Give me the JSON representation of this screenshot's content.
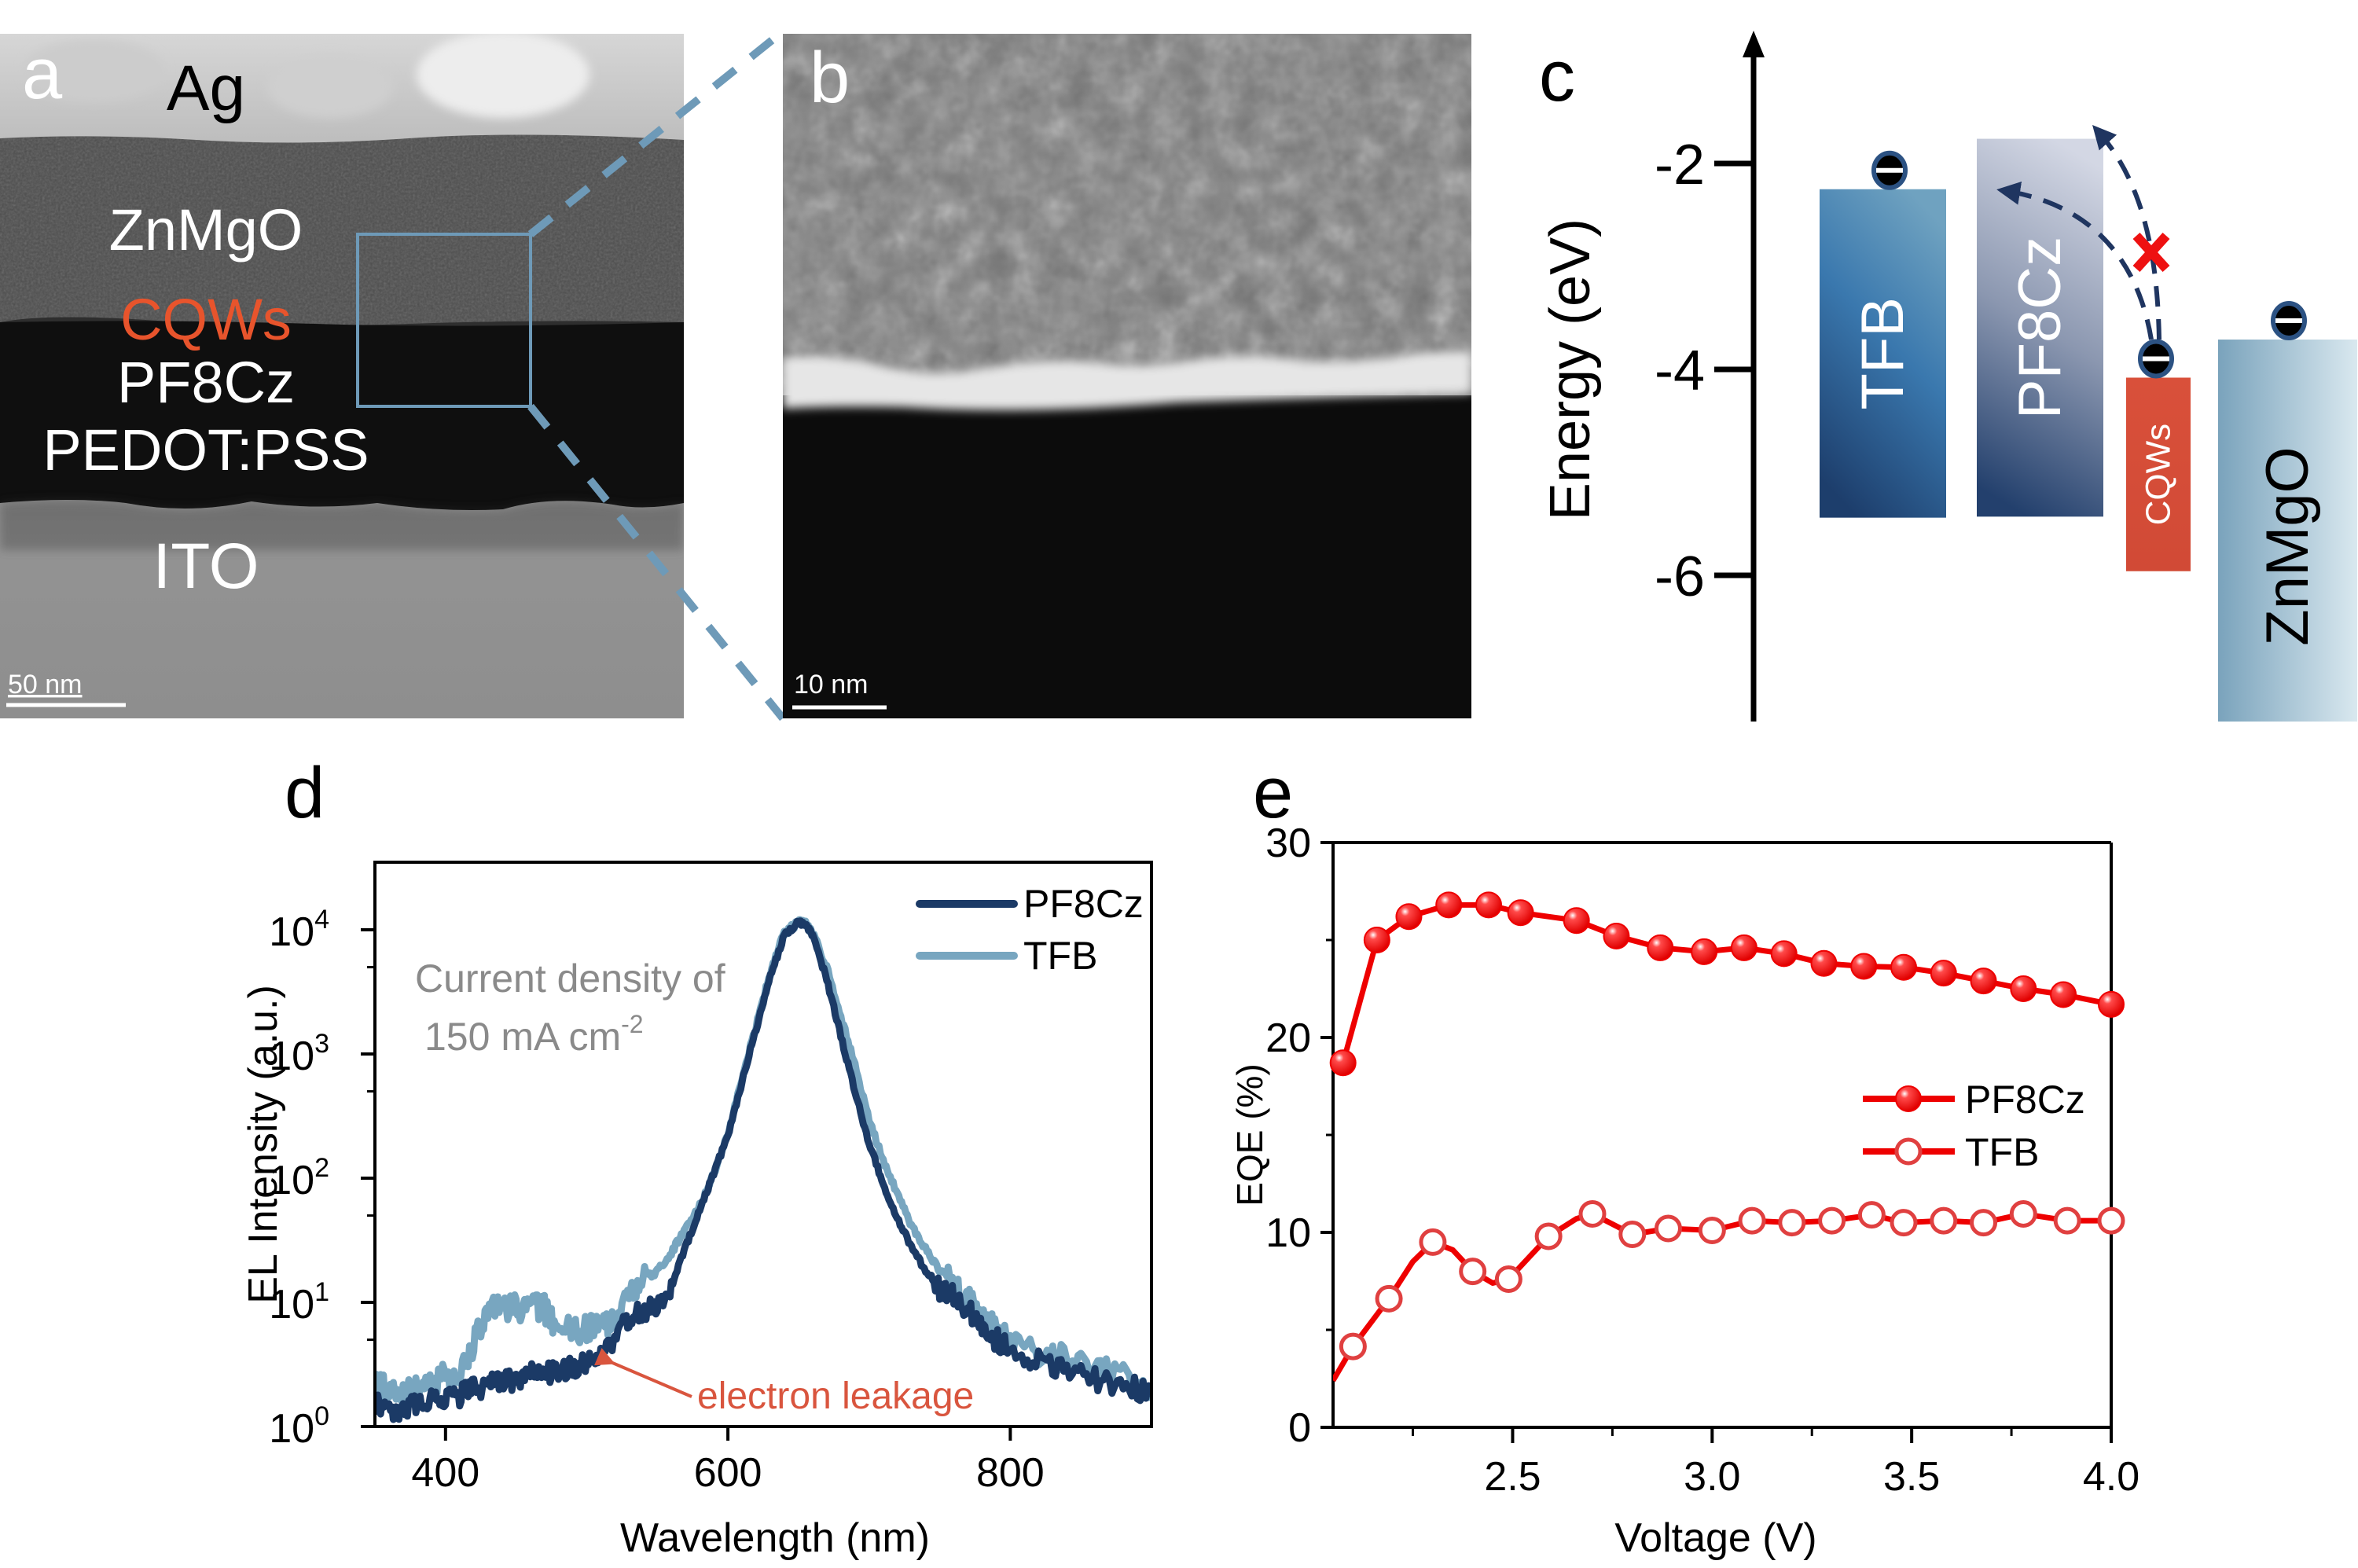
{
  "figure": {
    "panel_letters": {
      "a": "a",
      "b": "b",
      "c": "c",
      "d": "d",
      "e": "e"
    }
  },
  "panel_a": {
    "type": "cross-sectional TEM image",
    "layer_labels": [
      {
        "text": "Ag",
        "color": "#000000"
      },
      {
        "text": "ZnMgO",
        "color": "#ffffff"
      },
      {
        "text": "CQWs",
        "color": "#e8542c"
      },
      {
        "text": "PF8Cz",
        "color": "#ffffff"
      },
      {
        "text": "PEDOT:PSS",
        "color": "#ffffff"
      },
      {
        "text": "ITO",
        "color": "#ffffff"
      }
    ],
    "scale_bar": "50 nm",
    "zoom_box_color": "#6e9ab8"
  },
  "panel_b": {
    "type": "magnified TEM image",
    "scale_bar": "10 nm"
  },
  "panel_c": {
    "axis_label": "Energy (eV)",
    "ticks": [
      "-2",
      "-4",
      "-6"
    ],
    "tick_values": [
      -2,
      -4,
      -6
    ],
    "axis_range": [
      -7.42,
      -0.71
    ],
    "bands": [
      {
        "name": "TFB",
        "lumo": -2.25,
        "homo": -5.44,
        "color_top": "#6fa2c0",
        "color_bottom": "#1d3e6c"
      },
      {
        "name": "PF8Cz",
        "lumo": -1.76,
        "homo": -5.43,
        "color_top": "#d3d7e4",
        "color_bottom": "#23406d"
      },
      {
        "name": "CQWs",
        "lumo": -4.08,
        "homo": -5.96,
        "color_top": "#d9503a",
        "color_bottom": "#d14a36"
      },
      {
        "name": "ZnMgO",
        "lumo": -3.71,
        "homo": -7.42,
        "color_top": "#7aa3bc",
        "color_bottom": "#d9e8ef"
      }
    ],
    "electrons_on": [
      "TFB",
      "CQWs",
      "ZnMgO"
    ],
    "arrows": [
      {
        "from": "CQWs",
        "to": "TFB",
        "blocked": false
      },
      {
        "from": "CQWs",
        "to": "PF8Cz",
        "blocked": true
      }
    ],
    "arrow_color": "#1f3560",
    "block_mark_color": "#ee1111"
  },
  "chart_data": [
    {
      "id": "d",
      "type": "line",
      "title": "",
      "xlabel": "Wavelength (nm)",
      "ylabel": "EL Intensity (a.u.)",
      "xlim": [
        350,
        900
      ],
      "ylim": [
        1,
        35000
      ],
      "yscale": "log",
      "xticks": [
        400,
        600,
        800
      ],
      "yticks": [
        {
          "value": 1,
          "base": "10",
          "exp": "0"
        },
        {
          "value": 10,
          "base": "10",
          "exp": "1"
        },
        {
          "value": 100,
          "base": "10",
          "exp": "2"
        },
        {
          "value": 1000,
          "base": "10",
          "exp": "3"
        },
        {
          "value": 10000,
          "base": "10",
          "exp": "4"
        }
      ],
      "legend": {
        "placement": "top-right",
        "entries": [
          "PF8Cz",
          "TFB"
        ]
      },
      "annotations": [
        {
          "text_line1": "Current density of",
          "text_line2_main": "150 mA cm",
          "text_line2_sup": "-2",
          "color": "#8a8a8a"
        },
        {
          "text": "electron leakage",
          "color": "#d9553e",
          "points_to": {
            "x": 510,
            "y": 3
          }
        }
      ],
      "series": [
        {
          "name": "PF8Cz",
          "color": "#1b3a66",
          "x": [
            350,
            360,
            370,
            380,
            390,
            400,
            410,
            420,
            430,
            440,
            450,
            460,
            470,
            480,
            490,
            500,
            510,
            520,
            530,
            540,
            550,
            560,
            570,
            580,
            590,
            600,
            610,
            620,
            630,
            640,
            650,
            655,
            660,
            670,
            680,
            690,
            700,
            710,
            720,
            730,
            740,
            750,
            760,
            770,
            780,
            790,
            800,
            820,
            840,
            860,
            880,
            900
          ],
          "y": [
            1.5,
            1.3,
            1.4,
            1.5,
            1.6,
            1.7,
            1.8,
            2.0,
            2.2,
            2.3,
            2.4,
            2.6,
            2.7,
            2.9,
            3.0,
            3.2,
            3.6,
            5.0,
            7.5,
            8.5,
            9.5,
            14,
            28,
            55,
            110,
            220,
            600,
            1600,
            4200,
            9000,
            11500,
            11000,
            9000,
            4000,
            1400,
            500,
            190,
            90,
            48,
            28,
            18,
            13,
            11,
            9,
            6.5,
            5.0,
            4.2,
            3.3,
            2.8,
            2.4,
            2.2,
            1.8
          ]
        },
        {
          "name": "TFB",
          "color": "#78a6c0",
          "x": [
            350,
            360,
            370,
            380,
            390,
            400,
            410,
            420,
            430,
            440,
            450,
            460,
            470,
            480,
            490,
            500,
            510,
            520,
            530,
            540,
            550,
            560,
            570,
            580,
            590,
            600,
            610,
            620,
            630,
            640,
            650,
            655,
            660,
            670,
            680,
            690,
            700,
            710,
            720,
            730,
            740,
            750,
            760,
            770,
            780,
            790,
            800,
            820,
            840,
            860,
            880,
            900
          ],
          "y": [
            2.2,
            2.0,
            1.8,
            2.0,
            2.3,
            2.5,
            2.8,
            4.5,
            9.0,
            9.5,
            9.0,
            9.2,
            8.8,
            6.5,
            6.0,
            6.2,
            5.8,
            7.5,
            12,
            15,
            18,
            25,
            40,
            60,
            110,
            230,
            620,
            1700,
            4500,
            9500,
            11500,
            11200,
            9500,
            5000,
            2000,
            800,
            300,
            140,
            75,
            42,
            27,
            18,
            14,
            11,
            8,
            6.0,
            5.0,
            4.0,
            3.4,
            3.0,
            2.6,
            1.9
          ]
        }
      ]
    },
    {
      "id": "e",
      "type": "line",
      "title": "",
      "xlabel": "Voltage (V)",
      "ylabel": "EQE (%)",
      "xlim": [
        2.05,
        4.0
      ],
      "ylim": [
        0,
        30
      ],
      "xticks": [
        "2.5",
        "3.0",
        "3.5",
        "4.0"
      ],
      "xtick_values": [
        2.5,
        3.0,
        3.5,
        4.0
      ],
      "xminor_values": [
        2.25,
        2.75,
        3.25,
        3.75
      ],
      "yticks": [
        "0",
        "10",
        "20",
        "30"
      ],
      "ytick_values": [
        0,
        10,
        20,
        30
      ],
      "yminor_values": [
        5,
        15,
        25
      ],
      "legend": {
        "placement": "center-right",
        "entries": [
          "PF8Cz",
          "TFB"
        ]
      },
      "series": [
        {
          "name": "PF8Cz",
          "color": "#ee0000",
          "marker": "filled-circle",
          "x": [
            2.075,
            2.16,
            2.24,
            2.34,
            2.44,
            2.52,
            2.66,
            2.76,
            2.87,
            2.98,
            3.08,
            3.18,
            3.28,
            3.38,
            3.48,
            3.58,
            3.68,
            3.78,
            3.88,
            4.0
          ],
          "y": [
            18.7,
            25.0,
            26.2,
            26.8,
            26.8,
            26.4,
            26.0,
            25.2,
            24.6,
            24.4,
            24.6,
            24.3,
            23.8,
            23.65,
            23.6,
            23.3,
            22.9,
            22.5,
            22.2,
            21.7
          ]
        },
        {
          "name": "TFB",
          "color": "#ee0000",
          "marker": "open-circle",
          "x": [
            2.1,
            2.19,
            2.3,
            2.4,
            2.49,
            2.59,
            2.7,
            2.8,
            2.89,
            3.0,
            3.1,
            3.2,
            3.3,
            3.4,
            3.48,
            3.58,
            3.68,
            3.78,
            3.89,
            4.0
          ],
          "y": [
            4.15,
            6.6,
            9.5,
            8.0,
            7.6,
            9.8,
            10.95,
            9.9,
            10.2,
            10.1,
            10.6,
            10.5,
            10.6,
            10.9,
            10.5,
            10.6,
            10.5,
            10.95,
            10.6,
            10.6
          ],
          "line_x": [
            2.05,
            2.1,
            2.19,
            2.25,
            2.3,
            2.35,
            2.4,
            2.45,
            2.49,
            2.59,
            2.66,
            2.7,
            2.8,
            2.89,
            3.0,
            3.1,
            3.2,
            3.3,
            3.4,
            3.48,
            3.58,
            3.68,
            3.78,
            3.89,
            4.0
          ],
          "line_y": [
            2.4,
            4.15,
            6.6,
            8.5,
            9.5,
            9.1,
            8.0,
            7.4,
            7.6,
            9.8,
            10.7,
            10.95,
            9.9,
            10.2,
            10.1,
            10.6,
            10.5,
            10.6,
            10.9,
            10.5,
            10.6,
            10.5,
            10.95,
            10.6,
            10.6
          ]
        }
      ]
    }
  ]
}
